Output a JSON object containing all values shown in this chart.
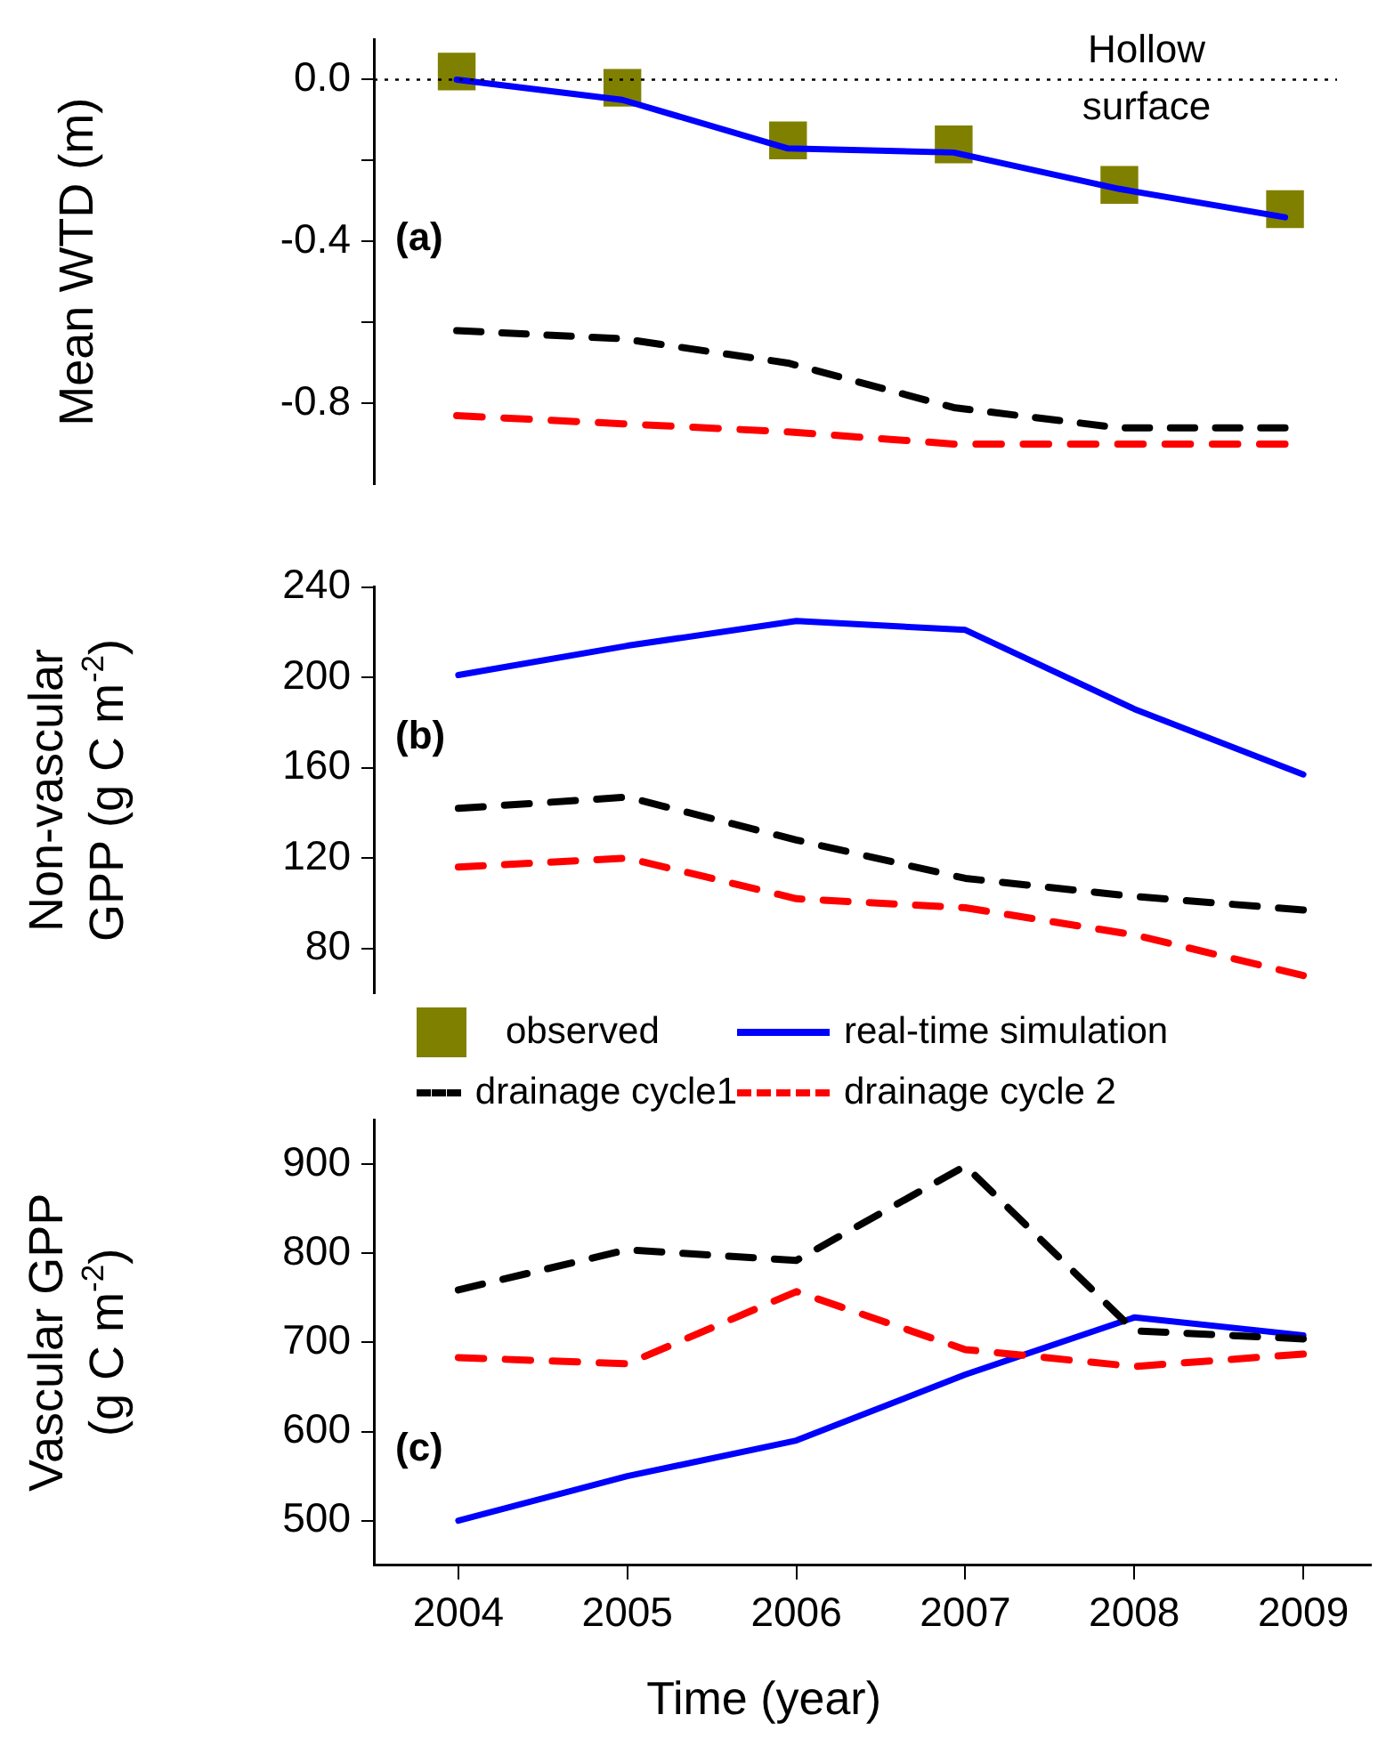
{
  "chart_data": [
    {
      "type": "line",
      "ylabel": "Mean WTD (m)",
      "x": [
        2004,
        2005,
        2006,
        2007,
        2008,
        2009
      ],
      "ylim": [
        -1.0,
        0.1
      ],
      "yticks": [
        {
          "value": 0,
          "label": "0.0"
        },
        {
          "value": -0.2,
          "label": null
        },
        {
          "value": -0.4,
          "label": "-0.4"
        },
        {
          "value": -0.6,
          "label": null
        },
        {
          "value": -0.8,
          "label": "-0.8"
        }
      ],
      "tick_labels": "y",
      "annotations": [
        "(a)"
      ],
      "legend": "bottom",
      "ref_lines": [
        {
          "axis": "y",
          "value": 0,
          "label": "Hollow surface",
          "color": "#000000",
          "line_style": "dotted"
        }
      ],
      "series": [
        {
          "name": "drainage cycle1",
          "color": "#000000",
          "line_style": "dashed",
          "marker": "none",
          "values": [
            -0.62,
            -0.64,
            -0.7,
            -0.81,
            -0.86,
            -0.86
          ]
        },
        {
          "name": "drainage cycle 2",
          "color": "#ff0000",
          "line_style": "dashed",
          "marker": "none",
          "values": [
            -0.83,
            -0.85,
            -0.87,
            -0.9,
            -0.9,
            -0.9
          ]
        },
        {
          "name": "real-time simulation",
          "color": "#0000ff",
          "line_style": "solid",
          "marker": "none",
          "values": [
            0.0,
            -0.05,
            -0.17,
            -0.18,
            -0.27,
            -0.34
          ]
        },
        {
          "name": "observed",
          "type": "scatter",
          "color": "#808000",
          "marker": "square",
          "values": [
            0.02,
            -0.02,
            -0.15,
            -0.16,
            -0.26,
            -0.32
          ]
        }
      ]
    },
    {
      "type": "line",
      "ylabel": "Non-vascular GPP (g C m$^{-2}$)",
      "x": [
        2004,
        2005,
        2006,
        2007,
        2008,
        2009
      ],
      "ylim": [
        60,
        240
      ],
      "yticks": [
        80,
        120,
        160,
        200,
        240
      ],
      "tick_labels": "y",
      "annotations": [
        "(b)"
      ],
      "series": [
        {
          "color": "#000000",
          "line_style": "dashed",
          "marker": "none",
          "values": [
            142,
            147,
            128,
            111,
            103,
            97
          ]
        },
        {
          "color": "#ff0000",
          "line_style": "dashed",
          "marker": "none",
          "values": [
            116,
            120,
            102,
            98,
            86,
            68
          ]
        },
        {
          "color": "#0000ff",
          "line_style": "solid",
          "marker": "none",
          "values": [
            201,
            214,
            225,
            221,
            186,
            157
          ]
        }
      ]
    },
    {
      "type": "line",
      "ylabel": "Vascular GPP (g C m$^{-2}$)",
      "xlabel": "Time (year)",
      "x": [
        2004,
        2005,
        2006,
        2007,
        2008,
        2009
      ],
      "xlim": [
        2003.5,
        2009.4
      ],
      "xticks": [
        2004,
        2005,
        2006,
        2007,
        2008,
        2009
      ],
      "ylim": [
        450,
        950
      ],
      "yticks": [
        500,
        600,
        700,
        800,
        900
      ],
      "annotations": [
        "(c)"
      ],
      "series": [
        {
          "color": "#000000",
          "line_style": "dashed",
          "marker": "none",
          "values": [
            759,
            804,
            792,
            898,
            713,
            704
          ]
        },
        {
          "color": "#ff0000",
          "line_style": "dashed",
          "marker": "none",
          "values": [
            683,
            676,
            757,
            692,
            673,
            687
          ]
        },
        {
          "color": "#0000ff",
          "line_style": "solid",
          "marker": "none",
          "values": [
            500,
            550,
            590,
            664,
            728,
            708
          ]
        }
      ]
    }
  ]
}
